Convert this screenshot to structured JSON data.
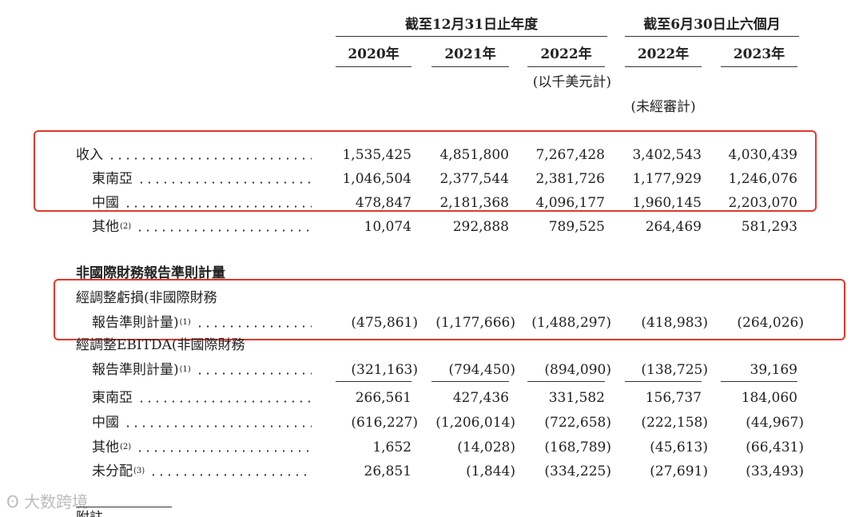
{
  "header": {
    "group_annual": "截至12月31日止年度",
    "group_interim": "截至6月30日止六個月",
    "years": [
      "2020年",
      "2021年",
      "2022年",
      "2022年",
      "2023年"
    ],
    "unit": "(以千美元計)",
    "unaudited": "(未經審計)"
  },
  "rows": [
    {
      "label": "收入",
      "values": [
        "1,535,425",
        "4,851,800",
        "7,267,428",
        "3,402,543",
        "4,030,439"
      ]
    },
    {
      "label": "東南亞",
      "values": [
        "1,046,504",
        "2,377,544",
        "2,381,726",
        "1,177,929",
        "1,246,076"
      ]
    },
    {
      "label": "中國",
      "values": [
        "478,847",
        "2,181,368",
        "4,096,177",
        "1,960,145",
        "2,203,070"
      ]
    },
    {
      "label": "其他",
      "note": "(2)",
      "values": [
        "10,074",
        "292,888",
        "789,525",
        "264,469",
        "581,293"
      ]
    },
    {
      "label": "非國際財務報告準則計量"
    },
    {
      "label": "經調整虧損(非國際財務"
    },
    {
      "label": "報告準則計量)",
      "note": "(1)",
      "values": [
        "(475,861)",
        "(1,177,666)",
        "(1,488,297)",
        "(418,983)",
        "(264,026)"
      ]
    },
    {
      "label": "經調整EBITDA(非國際財務"
    },
    {
      "label": "報告準則計量)",
      "note": "(1)",
      "values": [
        "(321,163)",
        "(794,450)",
        "(894,090)",
        "(138,725)",
        "39,169"
      ]
    },
    {
      "label": "東南亞",
      "values": [
        "266,561",
        "427,436",
        "331,582",
        "156,737",
        "184,060"
      ]
    },
    {
      "label": "中國",
      "values": [
        "(616,227)",
        "(1,206,014)",
        "(722,658)",
        "(222,158)",
        "(44,967)"
      ]
    },
    {
      "label": "其他",
      "note": "(2)",
      "values": [
        "1,652",
        "(14,028)",
        "(168,789)",
        "(45,613)",
        "(66,431)"
      ]
    },
    {
      "label": "未分配",
      "note": "(3)",
      "values": [
        "26,851",
        "(1,844)",
        "(334,225)",
        "(27,691)",
        "(33,493)"
      ]
    }
  ],
  "watermark": "大数跨境",
  "footer": "附註"
}
